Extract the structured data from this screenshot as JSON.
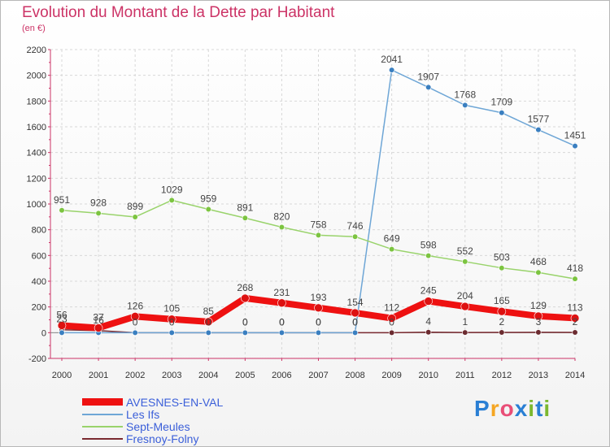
{
  "title": "Evolution du Montant de la Dette par Habitant",
  "subtitle": "(en €)",
  "logo": {
    "text": "Proxiti",
    "colors": [
      "#2a7fd4",
      "#f5a623",
      "#e94e77",
      "#2a7fd4",
      "#7cb82f",
      "#2a7fd4",
      "#7cb82f"
    ]
  },
  "chart_data": {
    "type": "line",
    "x": [
      2000,
      2001,
      2002,
      2003,
      2004,
      2005,
      2006,
      2007,
      2008,
      2009,
      2010,
      2011,
      2012,
      2013,
      2014
    ],
    "ylim": [
      -200,
      2200
    ],
    "yticks": [
      -200,
      0,
      200,
      400,
      600,
      800,
      1000,
      1200,
      1400,
      1600,
      1800,
      2000,
      2200
    ],
    "grid": true,
    "legend_position": "bottom-left",
    "series": [
      {
        "name": "Fresnoy-Folny",
        "color": "#7a2a30",
        "marker": "#6b2b30",
        "values": [
          23,
          16,
          0,
          0,
          0,
          0,
          0,
          0,
          0,
          0,
          4,
          1,
          2,
          3,
          2
        ],
        "labels": [
          "23",
          "16",
          "0",
          "0",
          "0",
          "0",
          "0",
          "0",
          "0",
          "0",
          "4",
          "1",
          "2",
          "3",
          "2"
        ]
      },
      {
        "name": "Les Ifs",
        "color": "#6ea6d6",
        "marker": "#3a7fc0",
        "values": [
          0,
          0,
          0,
          0,
          0,
          0,
          0,
          0,
          0,
          2041,
          1907,
          1768,
          1709,
          1577,
          1451
        ],
        "labels": [
          "",
          "",
          "",
          "",
          "",
          "0",
          "0",
          "0",
          "0",
          "2041",
          "1907",
          "1768",
          "1709",
          "1577",
          "1451"
        ]
      },
      {
        "name": "Sept-Meules",
        "color": "#99d36b",
        "marker": "#7cc440",
        "values": [
          951,
          928,
          899,
          1029,
          959,
          891,
          820,
          758,
          746,
          649,
          598,
          552,
          503,
          468,
          418
        ],
        "labels": [
          "951",
          "928",
          "899",
          "1029",
          "959",
          "891",
          "820",
          "758",
          "746",
          "649",
          "598",
          "552",
          "503",
          "468",
          "418"
        ]
      },
      {
        "name": "AVESNES-EN-VAL",
        "color": "#ee1111",
        "marker": "#dd1111",
        "values": [
          56,
          37,
          126,
          105,
          85,
          268,
          231,
          193,
          154,
          112,
          245,
          204,
          165,
          129,
          113
        ],
        "labels": [
          "56",
          "37",
          "126",
          "105",
          "85",
          "268",
          "231",
          "193",
          "154",
          "112",
          "245",
          "204",
          "165",
          "129",
          "113"
        ]
      }
    ],
    "legend": [
      {
        "name": "AVESNES-EN-VAL",
        "color": "#ee1111"
      },
      {
        "name": "Les Ifs",
        "color": "#6ea6d6"
      },
      {
        "name": "Sept-Meules",
        "color": "#99d36b"
      },
      {
        "name": "Fresnoy-Folny",
        "color": "#7a2a30"
      }
    ]
  }
}
